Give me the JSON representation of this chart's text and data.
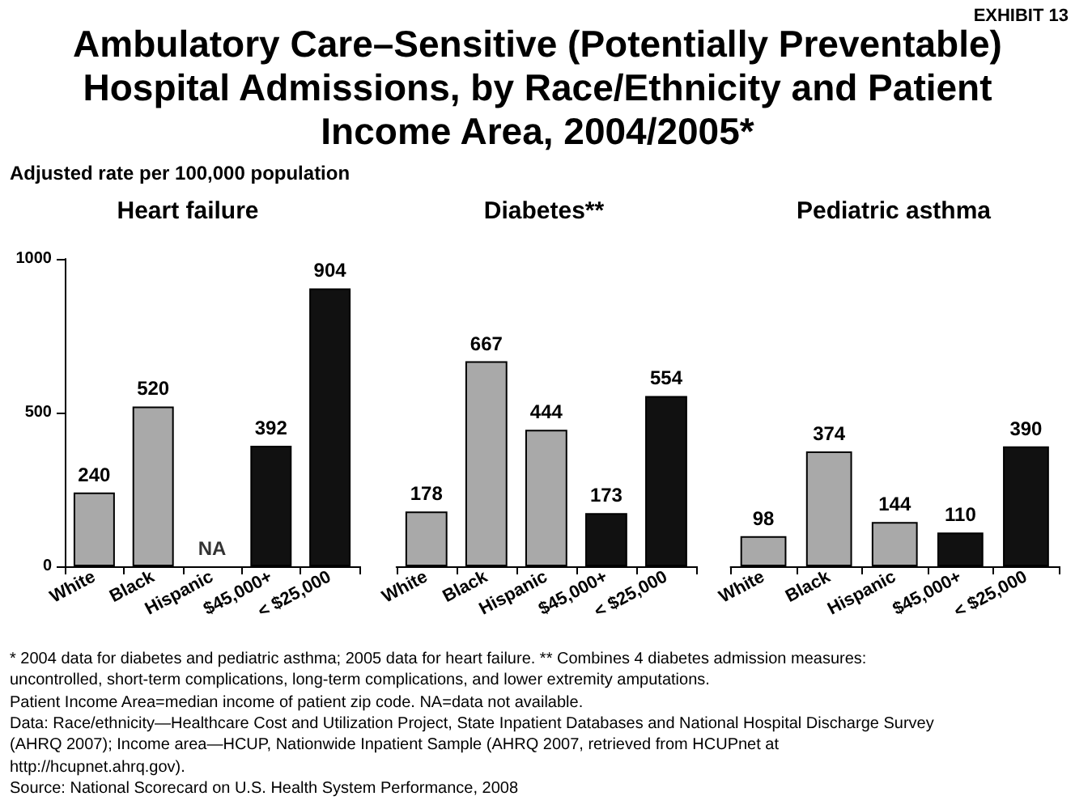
{
  "chart_data": [
    {
      "type": "bar",
      "title": "Heart failure",
      "ylabel": "Adjusted rate per 100,000 population",
      "annotations": [
        "EXHIBIT 13",
        "Ambulatory Care–Sensitive (Potentially Preventable) Hospital Admissions, by Race/Ethnicity and Patient Income Area, 2004/2005*",
        "* 2004 data for diabetes and pediatric asthma; 2005 data for heart failure. ** Combines 4 diabetes admission measures:",
        "uncontrolled, short-term complications, long-term complications, and lower extremity amputations.",
        "Patient Income Area=median income of patient zip code. NA=data not available.",
        "Data: Race/ethnicity—Healthcare Cost and Utilization Project, State Inpatient Databases and National Hospital Discharge Survey",
        "(AHRQ 2007); Income area—HCUP, Nationwide Inpatient Sample (AHRQ 2007, retrieved from HCUPnet at",
        "http://hcupnet.ahrq.gov).",
        "Source: National Scorecard on U.S. Health System Performance, 2008"
      ],
      "categories": [
        "White",
        "Black",
        "Hispanic",
        "$45,000+",
        "< $25,000"
      ],
      "values": [
        240,
        520,
        null,
        392,
        904
      ],
      "value_labels": [
        "240",
        "520",
        "NA",
        "392",
        "904"
      ],
      "colors": [
        "#a9a9a9",
        "#a9a9a9",
        "#a9a9a9",
        "#111111",
        "#111111"
      ],
      "ylim": [
        0,
        1000
      ],
      "yticks": [
        0,
        500,
        1000
      ],
      "grid": false
    },
    {
      "type": "bar",
      "title": "Diabetes**",
      "categories": [
        "White",
        "Black",
        "Hispanic",
        "$45,000+",
        "< $25,000"
      ],
      "values": [
        178,
        667,
        444,
        173,
        554
      ],
      "data_labels": true,
      "colors": [
        "#a9a9a9",
        "#a9a9a9",
        "#a9a9a9",
        "#111111",
        "#111111"
      ],
      "ylim": [
        0,
        1000
      ],
      "yticks": [
        0,
        500,
        1000
      ],
      "tick_labels": "x",
      "grid": false
    },
    {
      "type": "bar",
      "title": "Pediatric asthma",
      "categories": [
        "White",
        "Black",
        "Hispanic",
        "$45,000+",
        "< $25,000"
      ],
      "values": [
        98,
        374,
        144,
        110,
        390
      ],
      "data_labels": true,
      "colors": [
        "#a9a9a9",
        "#a9a9a9",
        "#a9a9a9",
        "#111111",
        "#111111"
      ],
      "ylim": [
        0,
        1000
      ],
      "yticks": [
        0,
        500,
        1000
      ],
      "tick_labels": "x",
      "grid": false
    }
  ]
}
